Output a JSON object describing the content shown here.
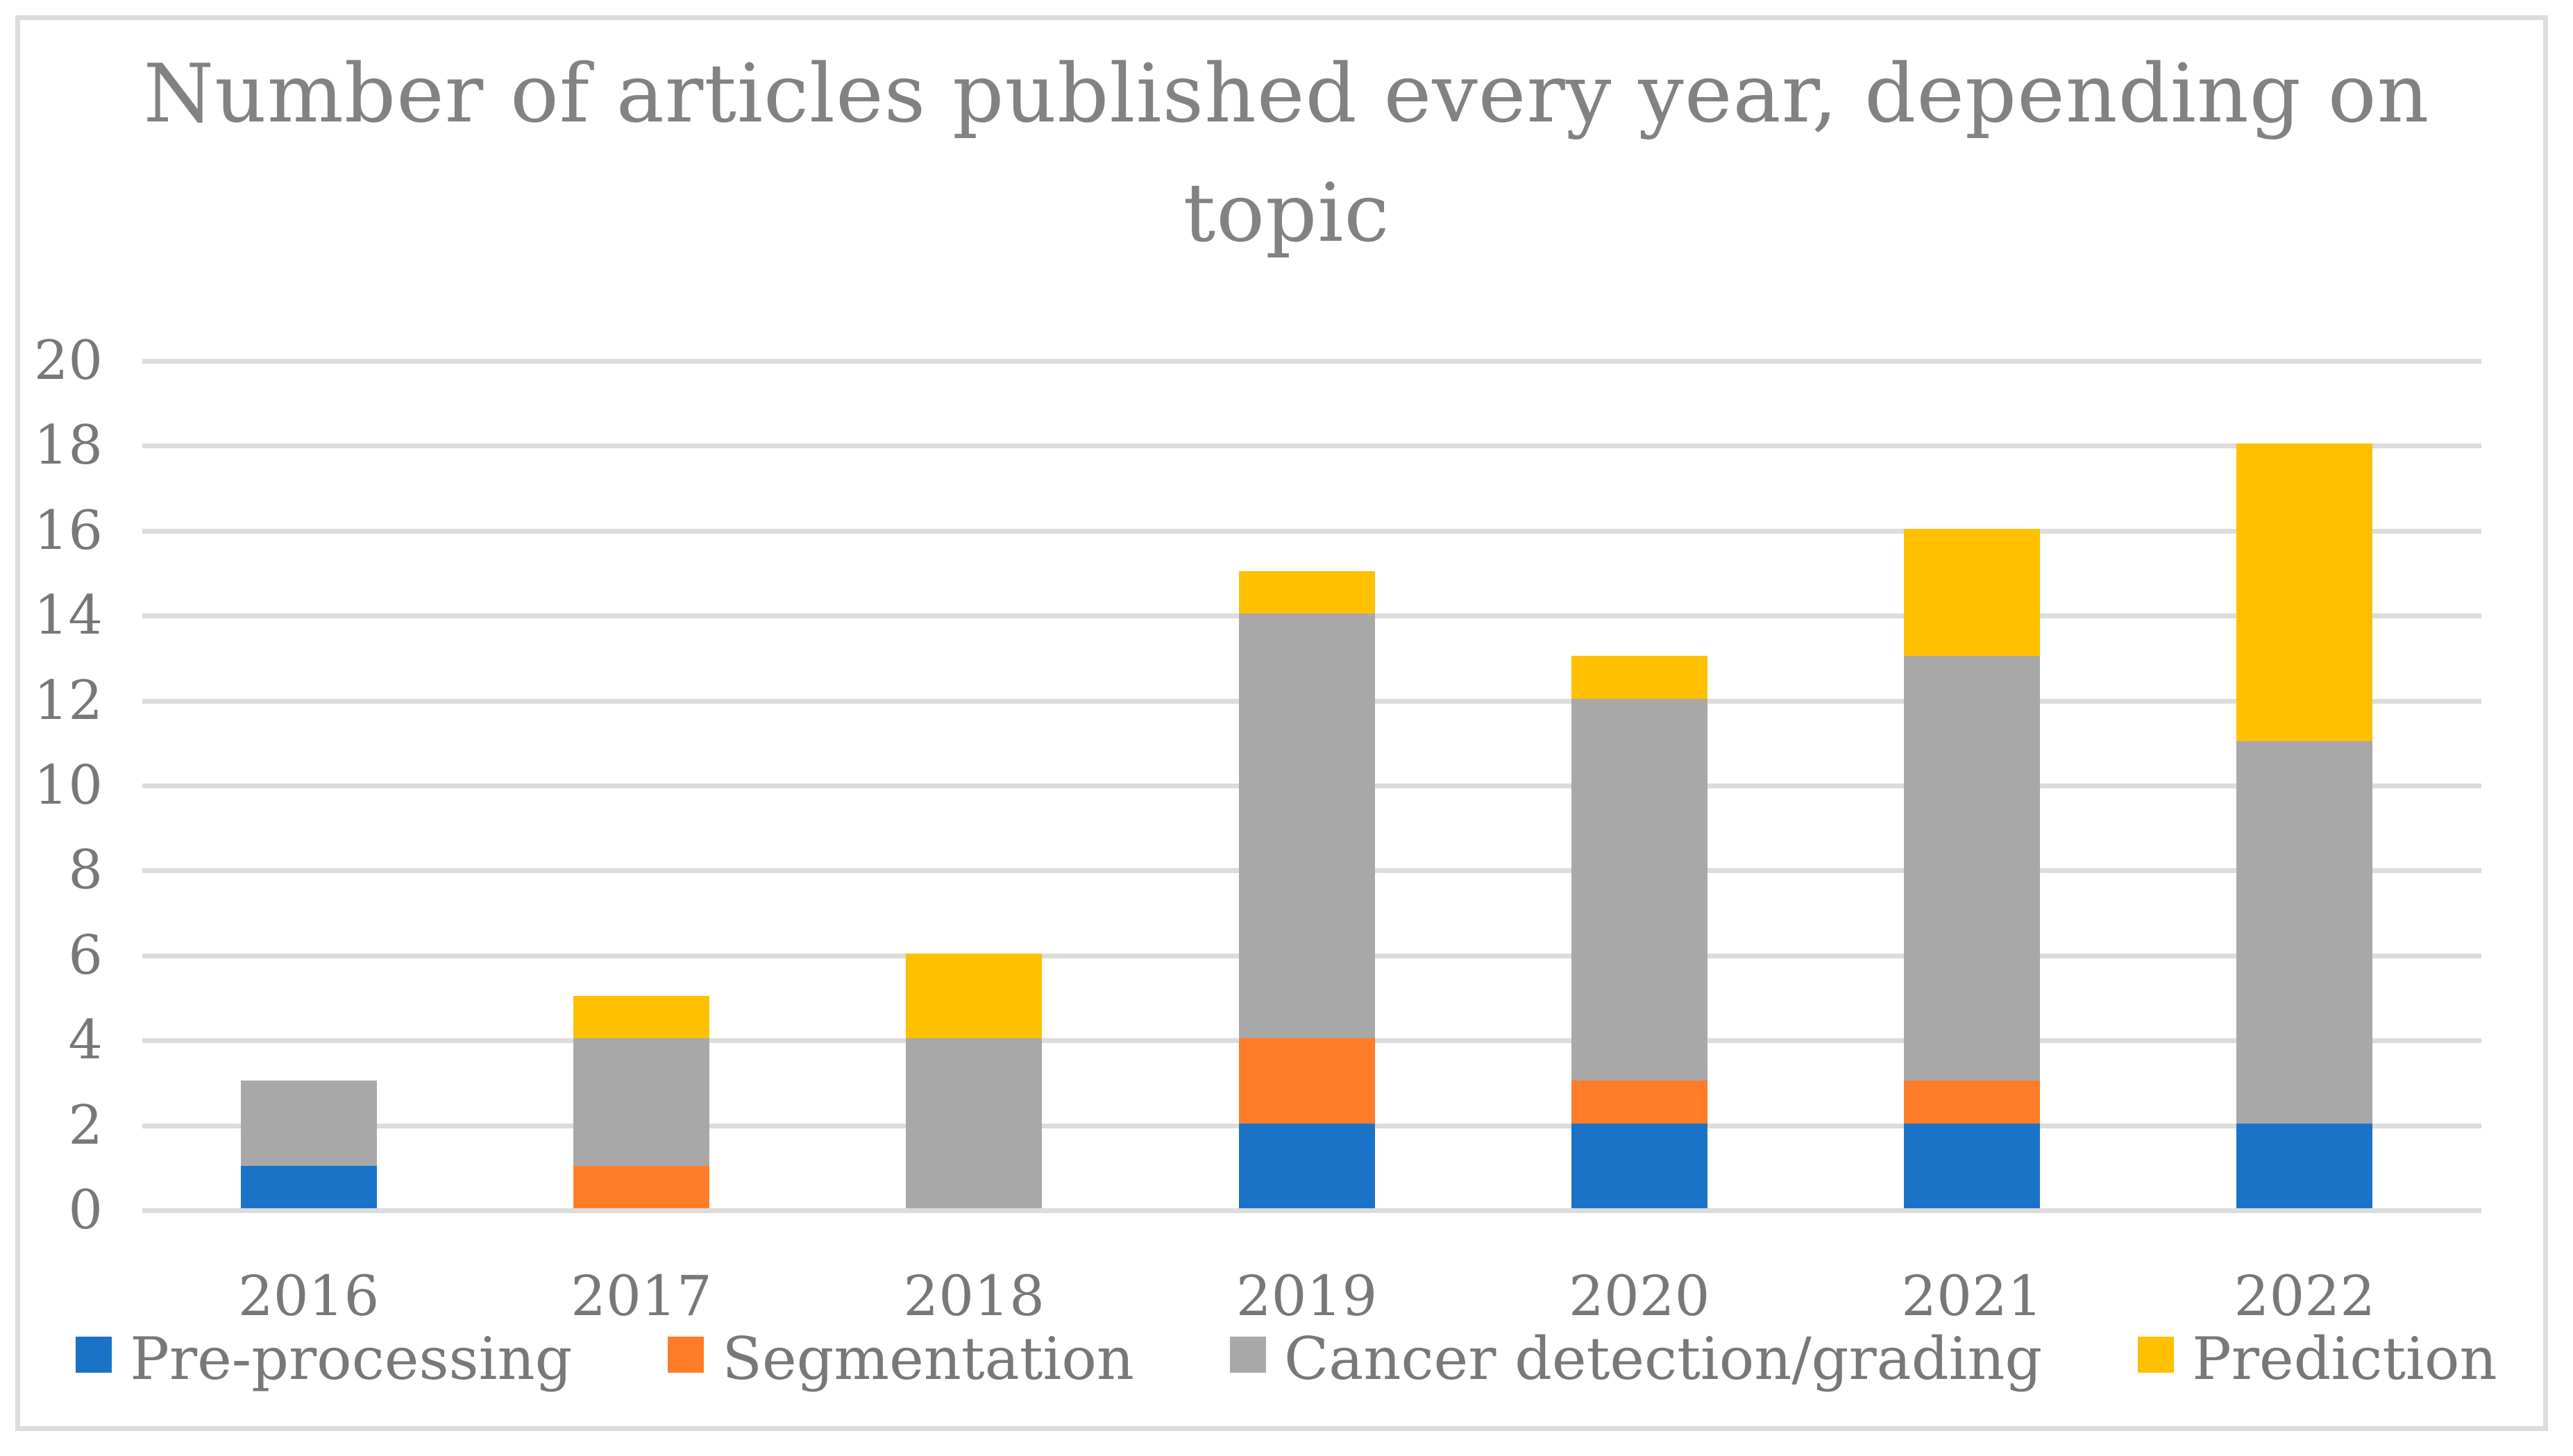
{
  "chart_data": {
    "type": "bar",
    "stacked": true,
    "title": "Number of articles published every year, depending on topic",
    "title_lines": [
      "Number of articles published every year, depending on",
      "topic"
    ],
    "categories": [
      "2016",
      "2017",
      "2018",
      "2019",
      "2020",
      "2021",
      "2022"
    ],
    "series": [
      {
        "name": "Pre-processing",
        "color": "#1B73C8",
        "values": [
          1,
          0,
          0,
          2,
          2,
          2,
          2
        ]
      },
      {
        "name": "Segmentation",
        "color": "#FF7D29",
        "values": [
          0,
          1,
          0,
          2,
          1,
          1,
          0
        ]
      },
      {
        "name": "Cancer detection/grading",
        "color": "#A8A8A8",
        "values": [
          2,
          3,
          4,
          10,
          9,
          10,
          9
        ]
      },
      {
        "name": "Prediction",
        "color": "#FFC000",
        "values": [
          0,
          1,
          2,
          1,
          1,
          3,
          7
        ]
      }
    ],
    "totals": [
      3,
      5,
      6,
      15,
      13,
      16,
      18
    ],
    "y_axis": {
      "min": 0,
      "max": 20,
      "step": 2,
      "tick_labels": [
        "0",
        "2",
        "4",
        "6",
        "8",
        "10",
        "12",
        "14",
        "16",
        "18",
        "20"
      ]
    },
    "xlabel": "",
    "ylabel": "",
    "grid": true,
    "legend_position": "bottom",
    "colors": {
      "grid": "#DCDCDC",
      "axis_text": "#787878",
      "title_text": "#828282",
      "background": "#FFFFFF",
      "frame_border": "#DCDCDC"
    }
  }
}
